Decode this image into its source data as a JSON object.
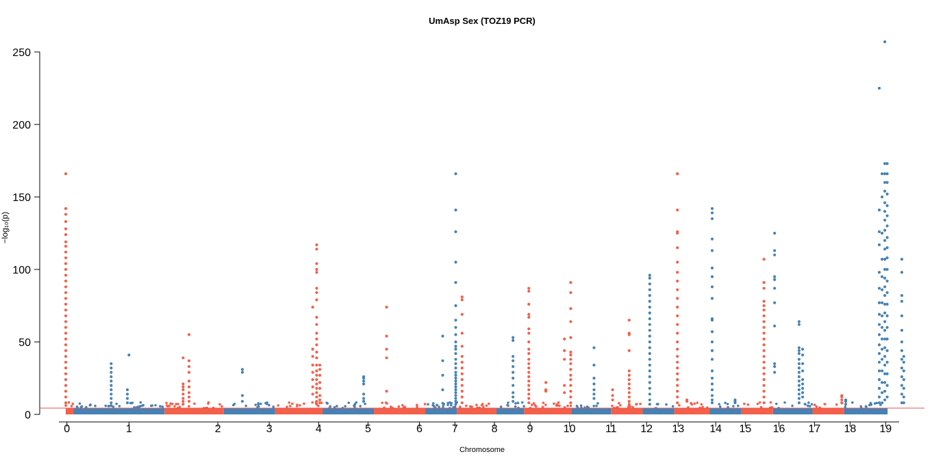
{
  "chart_data": {
    "type": "scatter",
    "title": "UmAsp Sex (TOZ19 PCR)",
    "xlabel": "Chromosome",
    "ylabel": "−log₁₀(p)",
    "ylim": [
      0,
      260
    ],
    "yticks": [
      0,
      50,
      100,
      150,
      200,
      250
    ],
    "threshold": 4.3,
    "colors": {
      "odd": "#4682b4",
      "even": "#f4604a",
      "threshold": "#e05050"
    },
    "chromosomes": [
      {
        "label": "0",
        "start": 0,
        "end": 2
      },
      {
        "label": "1",
        "start": 2,
        "end": 25
      },
      {
        "label": "2",
        "start": 25,
        "end": 40
      },
      {
        "label": "3",
        "start": 40,
        "end": 53
      },
      {
        "label": "4",
        "start": 53,
        "end": 65
      },
      {
        "label": "5",
        "start": 65,
        "end": 78
      },
      {
        "label": "6",
        "start": 78,
        "end": 91
      },
      {
        "label": "7",
        "start": 91,
        "end": 99
      },
      {
        "label": "8",
        "start": 99,
        "end": 109
      },
      {
        "label": "9",
        "start": 109,
        "end": 116
      },
      {
        "label": "10",
        "start": 116,
        "end": 128
      },
      {
        "label": "11",
        "start": 128,
        "end": 138
      },
      {
        "label": "12",
        "start": 138,
        "end": 146
      },
      {
        "label": "13",
        "start": 146,
        "end": 154
      },
      {
        "label": "14",
        "start": 154,
        "end": 163
      },
      {
        "label": "15",
        "start": 163,
        "end": 171
      },
      {
        "label": "16",
        "start": 171,
        "end": 179
      },
      {
        "label": "17",
        "start": 179,
        "end": 189
      },
      {
        "label": "18",
        "start": 189,
        "end": 197
      },
      {
        "label": "19",
        "start": 197,
        "end": 208
      }
    ],
    "xticks": [
      {
        "label": "0",
        "x": 0.3
      },
      {
        "label": "1",
        "x": 16
      },
      {
        "label": "2",
        "x": 38.5
      },
      {
        "label": "3",
        "x": 51.5
      },
      {
        "label": "4",
        "x": 64
      },
      {
        "label": "5",
        "x": 76.5
      },
      {
        "label": "6",
        "x": 89.5
      },
      {
        "label": "7",
        "x": 98.5
      },
      {
        "label": "8",
        "x": 108.5
      },
      {
        "label": "9",
        "x": 117.5
      },
      {
        "label": "10",
        "x": 127.5
      },
      {
        "label": "11",
        "x": 138
      },
      {
        "label": "12",
        "x": 147
      },
      {
        "label": "13",
        "x": 155
      },
      {
        "label": "14",
        "x": 164.5
      },
      {
        "label": "15",
        "x": 172
      },
      {
        "label": "16",
        "x": 180.5
      },
      {
        "label": "17",
        "x": 189.5
      },
      {
        "label": "18",
        "x": 198.5
      },
      {
        "label": "19",
        "x": 207.5
      }
    ],
    "peaks": [
      {
        "x": 0.0,
        "values": [
          166,
          142,
          138,
          133,
          128,
          124,
          119,
          116,
          112,
          108,
          104,
          100,
          96,
          92,
          88,
          84,
          80,
          76,
          72,
          68,
          64,
          60,
          56,
          52,
          48,
          44,
          40,
          36,
          32,
          28,
          24,
          20,
          16,
          12,
          8
        ]
      },
      {
        "x": 11.5,
        "values": [
          35,
          32,
          29,
          26,
          23,
          20,
          17,
          14,
          11,
          8,
          6
        ]
      },
      {
        "x": 15.6,
        "values": [
          17,
          14,
          11,
          8
        ]
      },
      {
        "x": 16.0,
        "values": [
          41
        ]
      },
      {
        "x": 29.7,
        "values": [
          39,
          21,
          19,
          17,
          14,
          11,
          9,
          7
        ]
      },
      {
        "x": 31.2,
        "values": [
          55,
          37,
          33,
          29,
          23,
          19,
          15,
          12,
          9
        ]
      },
      {
        "x": 44.7,
        "values": [
          31,
          29,
          13,
          9
        ]
      },
      {
        "x": 62.5,
        "values": [
          74,
          45,
          40,
          34,
          29,
          24,
          19,
          14
        ]
      },
      {
        "x": 63.5,
        "values": [
          117,
          114,
          104,
          100,
          98,
          87,
          84,
          79,
          67,
          62,
          56,
          52,
          48,
          43,
          39,
          34,
          30,
          27,
          24,
          21,
          18,
          15,
          12,
          9,
          7
        ]
      },
      {
        "x": 64.3,
        "values": [
          34,
          31,
          27,
          22,
          18,
          13,
          10,
          8
        ]
      },
      {
        "x": 75.4,
        "values": [
          26,
          25,
          23,
          21,
          14,
          11,
          9
        ]
      },
      {
        "x": 81.2,
        "values": [
          74,
          54,
          45,
          39,
          16
        ]
      },
      {
        "x": 95.4,
        "values": [
          54,
          37,
          27,
          17
        ]
      },
      {
        "x": 98.7,
        "values": [
          166,
          141,
          126,
          105,
          91,
          75,
          65,
          60,
          55,
          50,
          47,
          45,
          42,
          38,
          35,
          32,
          29,
          27,
          25,
          23,
          21,
          19,
          17,
          15,
          13,
          11,
          9,
          7
        ]
      },
      {
        "x": 100.3,
        "values": [
          81,
          79,
          69,
          56,
          47,
          40,
          36,
          32,
          28,
          24,
          20,
          16,
          12,
          8
        ]
      },
      {
        "x": 113.2,
        "values": [
          53,
          51,
          40,
          37,
          33,
          29,
          25,
          20,
          15,
          12,
          9
        ]
      },
      {
        "x": 117.2,
        "values": [
          87,
          85,
          76,
          69,
          67,
          59,
          56,
          50,
          45,
          42,
          38,
          35,
          32,
          29,
          26,
          23,
          20,
          17,
          14,
          11,
          8
        ]
      },
      {
        "x": 121.5,
        "values": [
          22,
          17,
          16
        ]
      },
      {
        "x": 126.2,
        "values": [
          52,
          44,
          38,
          20,
          15
        ]
      },
      {
        "x": 127.8,
        "values": [
          91,
          84,
          73,
          64,
          53,
          43,
          41,
          38,
          35,
          31,
          27,
          24,
          20,
          16,
          12,
          8
        ]
      },
      {
        "x": 133.7,
        "values": [
          46,
          34,
          25,
          21,
          17,
          14,
          11
        ]
      },
      {
        "x": 138.4,
        "values": [
          17,
          13,
          10
        ]
      },
      {
        "x": 142.6,
        "values": [
          65,
          56,
          55,
          44,
          30,
          27,
          24,
          21,
          18,
          15,
          12,
          9,
          7
        ]
      },
      {
        "x": 147.8,
        "values": [
          96,
          94,
          90,
          86,
          82,
          78,
          74,
          70,
          66,
          62,
          58,
          54,
          50,
          46,
          42,
          38,
          34,
          30,
          26,
          22,
          18,
          14,
          10,
          7
        ]
      },
      {
        "x": 154.8,
        "values": [
          166,
          166,
          141,
          126,
          125,
          115,
          105,
          98,
          92,
          86,
          80,
          74,
          68,
          62,
          56,
          50,
          45,
          40,
          36,
          32,
          28,
          24,
          20,
          16,
          12,
          8
        ]
      },
      {
        "x": 157.2,
        "values": [
          10,
          9
        ]
      },
      {
        "x": 163.6,
        "values": [
          142,
          139,
          135,
          121,
          113,
          101,
          95,
          88,
          80,
          66,
          65,
          57,
          50,
          44,
          38,
          30,
          25,
          21,
          17,
          13,
          10,
          8
        ]
      },
      {
        "x": 169.4,
        "values": [
          10,
          9,
          8
        ]
      },
      {
        "x": 176.7,
        "values": [
          107,
          91,
          87,
          78,
          75,
          72,
          68,
          64,
          60,
          56,
          52,
          48,
          44,
          40,
          36,
          32,
          28,
          24,
          20,
          16,
          12,
          8
        ]
      },
      {
        "x": 179.4,
        "values": [
          125,
          113,
          110,
          95,
          93,
          87,
          77,
          61,
          35,
          33,
          29
        ]
      },
      {
        "x": 185.6,
        "values": [
          64,
          62,
          46,
          44,
          42,
          38,
          35,
          32,
          29,
          26,
          23,
          20,
          17,
          14,
          11,
          8
        ]
      },
      {
        "x": 186.5,
        "values": [
          45,
          41,
          35,
          30,
          24,
          21,
          18,
          15,
          12
        ]
      },
      {
        "x": 196.4,
        "values": [
          13,
          12,
          10,
          8
        ]
      },
      {
        "x": 197.4,
        "values": [
          10,
          9,
          7
        ]
      },
      {
        "x": 205.9,
        "values": [
          225,
          141,
          126,
          117,
          98,
          87,
          77,
          69,
          62,
          55,
          48,
          42,
          36,
          30,
          24,
          18,
          12,
          8
        ]
      },
      {
        "x": 206.6,
        "values": [
          166,
          150,
          125,
          107,
          95,
          86,
          77,
          68,
          60,
          52,
          45,
          38,
          30,
          22,
          15,
          8
        ]
      },
      {
        "x": 207.3,
        "values": [
          257,
          173,
          166,
          160,
          154,
          146,
          140,
          134,
          127,
          120,
          114,
          107,
          100,
          94,
          88,
          82,
          76,
          70,
          64,
          58,
          52,
          46,
          40,
          34,
          28,
          22,
          16,
          10
        ]
      },
      {
        "x": 207.9,
        "values": [
          173,
          166,
          160,
          152,
          144,
          137,
          130,
          122,
          115,
          108,
          100,
          92,
          84,
          76,
          68,
          60,
          52,
          44,
          36,
          28,
          20,
          12
        ]
      },
      {
        "x": 211.6,
        "values": [
          107,
          98,
          82,
          78,
          68,
          58,
          50,
          44,
          38,
          32,
          26,
          20,
          14,
          8
        ]
      },
      {
        "x": 212.1,
        "values": [
          40,
          36,
          30,
          24,
          18,
          12,
          8
        ]
      }
    ]
  }
}
